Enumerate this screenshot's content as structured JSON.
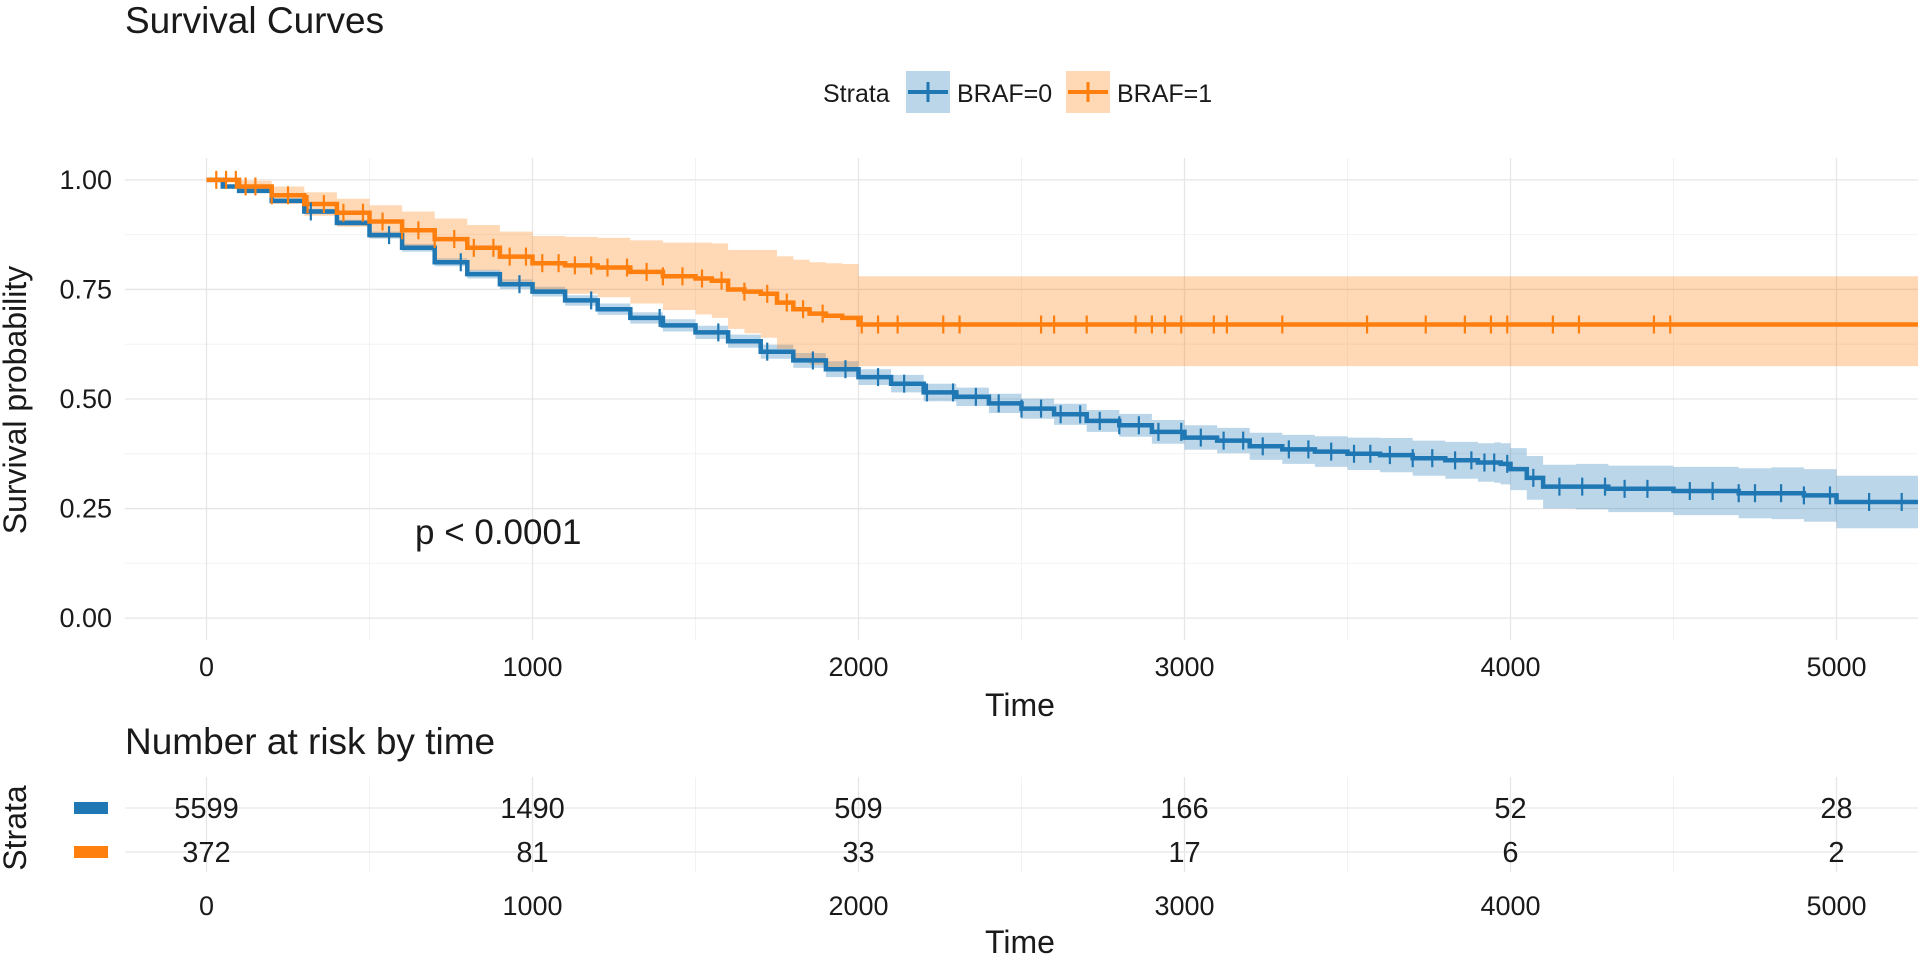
{
  "chart_data": {
    "type": "line",
    "title": "Survival Curves",
    "xlabel": "Time",
    "ylabel": "Survival probability",
    "xlim": [
      -250,
      5250
    ],
    "ylim": [
      -0.05,
      1.05
    ],
    "x_ticks": [
      "0",
      "1000",
      "2000",
      "3000",
      "4000",
      "5000"
    ],
    "x_tick_values": [
      0,
      1000,
      2000,
      3000,
      4000,
      5000
    ],
    "y_ticks": [
      "0.00",
      "0.25",
      "0.50",
      "0.75",
      "1.00"
    ],
    "y_tick_values": [
      0,
      0.25,
      0.5,
      0.75,
      1.0
    ],
    "grid": true,
    "legend_position": "top",
    "legend_title": "Strata",
    "annotation": "p < 0.0001",
    "colors": {
      "BRAF=0": "#1f77b4",
      "BRAF=1": "#ff7f0e"
    },
    "series": [
      {
        "name": "BRAF=0",
        "color": "#1f77b4",
        "x": [
          0,
          50,
          100,
          200,
          300,
          400,
          500,
          600,
          700,
          800,
          900,
          1000,
          1100,
          1200,
          1300,
          1400,
          1500,
          1600,
          1700,
          1800,
          1900,
          2000,
          2100,
          2200,
          2300,
          2400,
          2500,
          2600,
          2700,
          2800,
          2900,
          3000,
          3100,
          3200,
          3300,
          3400,
          3500,
          3600,
          3700,
          3800,
          3900,
          3950,
          3970,
          4000,
          4050,
          4100,
          4200,
          4300,
          4500,
          4700,
          4800,
          4900,
          5000,
          5250
        ],
        "y": [
          1.0,
          0.985,
          0.975,
          0.952,
          0.928,
          0.902,
          0.874,
          0.845,
          0.812,
          0.785,
          0.762,
          0.745,
          0.725,
          0.705,
          0.685,
          0.668,
          0.652,
          0.632,
          0.608,
          0.588,
          0.568,
          0.55,
          0.535,
          0.515,
          0.505,
          0.49,
          0.478,
          0.465,
          0.45,
          0.44,
          0.425,
          0.412,
          0.405,
          0.392,
          0.385,
          0.38,
          0.375,
          0.372,
          0.365,
          0.36,
          0.355,
          0.355,
          0.352,
          0.34,
          0.32,
          0.3,
          0.3,
          0.295,
          0.29,
          0.285,
          0.285,
          0.28,
          0.265,
          0.265
        ],
        "ci_lower": [
          1.0,
          0.982,
          0.971,
          0.947,
          0.922,
          0.895,
          0.866,
          0.836,
          0.803,
          0.775,
          0.751,
          0.734,
          0.713,
          0.692,
          0.672,
          0.654,
          0.637,
          0.617,
          0.592,
          0.571,
          0.55,
          0.532,
          0.515,
          0.495,
          0.484,
          0.468,
          0.455,
          0.441,
          0.425,
          0.414,
          0.398,
          0.384,
          0.376,
          0.361,
          0.352,
          0.345,
          0.338,
          0.333,
          0.325,
          0.318,
          0.311,
          0.309,
          0.305,
          0.292,
          0.27,
          0.25,
          0.248,
          0.242,
          0.235,
          0.228,
          0.226,
          0.22,
          0.205,
          0.205
        ],
        "ci_upper": [
          1.0,
          0.988,
          0.979,
          0.957,
          0.934,
          0.909,
          0.882,
          0.854,
          0.821,
          0.795,
          0.773,
          0.756,
          0.737,
          0.718,
          0.698,
          0.682,
          0.667,
          0.647,
          0.624,
          0.605,
          0.586,
          0.568,
          0.555,
          0.535,
          0.526,
          0.512,
          0.501,
          0.489,
          0.475,
          0.466,
          0.452,
          0.44,
          0.434,
          0.423,
          0.418,
          0.415,
          0.412,
          0.411,
          0.405,
          0.402,
          0.399,
          0.401,
          0.399,
          0.388,
          0.37,
          0.35,
          0.352,
          0.348,
          0.345,
          0.342,
          0.344,
          0.34,
          0.325,
          0.325
        ],
        "censor_x": [
          320,
          560,
          780,
          960,
          1180,
          1390,
          1570,
          1720,
          1860,
          1960,
          2060,
          2140,
          2210,
          2290,
          2360,
          2430,
          2500,
          2560,
          2620,
          2680,
          2740,
          2800,
          2860,
          2920,
          2990,
          3050,
          3120,
          3180,
          3240,
          3320,
          3380,
          3450,
          3520,
          3570,
          3630,
          3700,
          3760,
          3830,
          3880,
          3920,
          3950,
          3990,
          4070,
          4150,
          4220,
          4290,
          4350,
          4420,
          4550,
          4620,
          4700,
          4750,
          4830,
          4900,
          4980,
          5100,
          5200
        ]
      },
      {
        "name": "BRAF=1",
        "color": "#ff7f0e",
        "x": [
          0,
          100,
          200,
          300,
          400,
          500,
          600,
          700,
          800,
          900,
          1000,
          1100,
          1200,
          1300,
          1400,
          1500,
          1550,
          1600,
          1650,
          1700,
          1750,
          1800,
          1850,
          1900,
          1950,
          2000,
          2100,
          2500,
          3000,
          4000,
          4500,
          5250
        ],
        "y": [
          1.0,
          0.985,
          0.965,
          0.945,
          0.925,
          0.905,
          0.885,
          0.865,
          0.845,
          0.825,
          0.81,
          0.805,
          0.8,
          0.79,
          0.78,
          0.775,
          0.77,
          0.75,
          0.745,
          0.74,
          0.72,
          0.705,
          0.695,
          0.69,
          0.685,
          0.67,
          0.67,
          0.67,
          0.67,
          0.67,
          0.67,
          0.67
        ],
        "ci_lower": [
          1.0,
          0.972,
          0.945,
          0.918,
          0.893,
          0.868,
          0.842,
          0.818,
          0.793,
          0.768,
          0.748,
          0.74,
          0.732,
          0.718,
          0.703,
          0.693,
          0.685,
          0.66,
          0.65,
          0.64,
          0.614,
          0.592,
          0.578,
          0.57,
          0.562,
          0.575,
          0.575,
          0.575,
          0.575,
          0.575,
          0.575,
          0.575
        ],
        "ci_upper": [
          1.0,
          0.998,
          0.985,
          0.972,
          0.957,
          0.942,
          0.928,
          0.912,
          0.897,
          0.882,
          0.872,
          0.87,
          0.868,
          0.862,
          0.857,
          0.857,
          0.855,
          0.84,
          0.84,
          0.84,
          0.826,
          0.818,
          0.812,
          0.81,
          0.808,
          0.78,
          0.78,
          0.78,
          0.78,
          0.78,
          0.78,
          0.78
        ],
        "censor_x": [
          30,
          60,
          90,
          120,
          150,
          200,
          250,
          310,
          360,
          420,
          480,
          540,
          600,
          650,
          700,
          760,
          820,
          880,
          930,
          980,
          1030,
          1080,
          1130,
          1180,
          1230,
          1290,
          1350,
          1400,
          1460,
          1520,
          1580,
          1650,
          1720,
          1780,
          1830,
          1890,
          2010,
          2060,
          2120,
          2260,
          2310,
          2560,
          2600,
          2700,
          2850,
          2900,
          2940,
          2990,
          3090,
          3130,
          3300,
          3560,
          3740,
          3860,
          3940,
          3990,
          4130,
          4210,
          4440,
          4490
        ]
      }
    ]
  },
  "risk_table": {
    "title": "Number at risk by time",
    "ylabel": "Strata",
    "xlabel": "Time",
    "x_tick_values": [
      0,
      1000,
      2000,
      3000,
      4000,
      5000
    ],
    "x_ticks": [
      "0",
      "1000",
      "2000",
      "3000",
      "4000",
      "5000"
    ],
    "rows": [
      {
        "color": "#1f77b4",
        "values": [
          "5599",
          "1490",
          "509",
          "166",
          "52",
          "28"
        ]
      },
      {
        "color": "#ff7f0e",
        "values": [
          "372",
          "81",
          "33",
          "17",
          "6",
          "2"
        ]
      }
    ]
  }
}
